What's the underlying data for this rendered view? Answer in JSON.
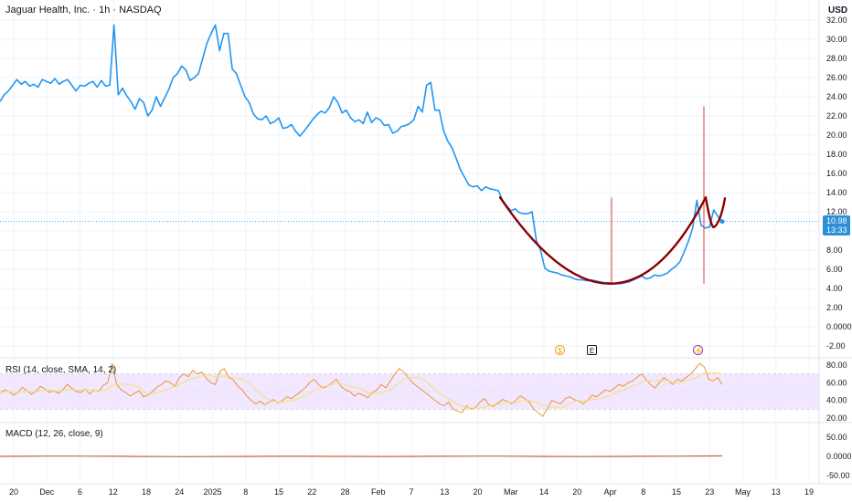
{
  "header": {
    "title": "Jaguar Health, Inc. · 1h · NASDAQ",
    "currency": "USD"
  },
  "indicators": {
    "rsi_label": "RSI (14, close, SMA, 14, 2)",
    "macd_label": "MACD (12, 26, close, 9)"
  },
  "price_label": {
    "value": "10.98",
    "countdown": "13:33"
  },
  "event_markers": {
    "dividend": "$",
    "earnings": "E",
    "split": "⚡"
  },
  "colors": {
    "price_line": "#2196f3",
    "cup_curve": "#8b0000",
    "spike": "#e53935",
    "rsi_line": "#f08a24",
    "rsi_band": "#ede1ff",
    "macd_line": "#c0692e"
  },
  "chart_data": [
    {
      "type": "line",
      "title": "Jaguar Health, Inc. · 1h · NASDAQ",
      "x_tick_labels": [
        "20",
        "Dec",
        "6",
        "12",
        "18",
        "24",
        "2025",
        "8",
        "15",
        "22",
        "28",
        "Feb",
        "7",
        "13",
        "20",
        "Mar",
        "14",
        "20",
        "Apr",
        "8",
        "15",
        "23",
        "May",
        "13",
        "19"
      ],
      "y_tick_labels": [
        "32.00",
        "30.00",
        "28.00",
        "26.00",
        "24.00",
        "22.00",
        "20.00",
        "18.00",
        "16.00",
        "14.00",
        "12.00",
        "10.00",
        "8.00",
        "6.00",
        "4.00",
        "2.00",
        "0.0000",
        "-2.00"
      ],
      "ylim": [
        -2,
        32
      ],
      "series": [
        {
          "values": [
            23.5,
            24.2,
            24.6,
            25.2,
            25.8,
            25.3,
            25.6,
            25.1,
            25.3,
            25.0,
            25.8,
            25.6,
            25.4,
            25.9,
            25.3,
            25.6,
            25.8,
            25.2,
            24.6,
            25.2,
            25.1,
            25.4,
            25.6,
            25.0,
            25.7,
            25.1,
            25.2,
            31.5,
            24.2,
            24.9,
            24.1,
            23.5,
            22.7,
            23.8,
            23.4,
            22.0,
            22.6,
            24.0,
            23.0,
            23.9,
            24.8,
            26.0,
            26.4,
            27.2,
            26.8,
            25.7,
            26.0,
            26.4,
            28.0,
            29.6,
            30.6,
            31.5,
            28.8,
            30.6,
            30.6,
            26.9,
            26.4,
            25.2,
            24.0,
            23.4,
            22.2,
            21.7,
            21.6,
            22.0,
            21.2,
            21.4,
            21.8,
            20.7,
            20.8,
            21.1,
            20.4,
            19.9,
            20.4,
            21.0,
            21.6,
            22.1,
            22.5,
            22.3,
            22.9,
            24.0,
            23.4,
            22.3,
            22.6,
            21.8,
            21.4,
            21.6,
            21.2,
            22.4,
            21.3,
            21.8,
            21.6,
            21.0,
            21.1,
            20.2,
            20.4,
            20.9,
            21.0,
            21.2,
            21.6,
            23.0,
            22.4,
            25.2,
            25.5,
            22.6,
            22.6,
            20.5,
            19.4,
            18.7,
            17.6,
            16.4,
            15.6,
            14.8,
            14.6,
            14.7,
            14.2,
            14.6,
            14.4,
            14.3,
            14.2,
            13.2,
            12.6,
            12.1,
            12.3,
            11.9,
            11.8,
            11.8,
            12.0,
            9.0,
            8.0,
            6.1,
            5.8,
            5.7,
            5.6,
            5.4,
            5.3,
            5.2,
            5.0,
            4.9,
            4.9,
            4.8,
            4.9,
            4.8,
            4.7,
            4.6,
            4.6,
            4.5,
            4.5,
            4.5,
            4.6,
            4.7,
            4.9,
            5.1,
            5.3,
            5.0,
            5.1,
            5.4,
            5.3,
            5.4,
            5.6,
            6.0,
            6.3,
            6.8,
            7.8,
            8.9,
            10.3,
            13.2,
            10.6,
            10.3,
            10.4,
            12.2,
            11.5,
            10.98
          ]
        }
      ],
      "overlays": {
        "cup_curve": {
          "from": [
            13.5,
            13.0
          ],
          "bottom": 4.5,
          "to": [
            13.5,
            13.4
          ]
        },
        "spikes": [
          13.5,
          23.0
        ]
      }
    },
    {
      "type": "line",
      "title": "RSI (14, close, SMA, 14, 2)",
      "y_tick_labels": [
        "80.00",
        "60.00",
        "40.00",
        "20.00"
      ],
      "ylim": [
        20,
        80
      ],
      "band": [
        30,
        70
      ],
      "values": [
        48,
        52,
        50,
        46,
        49,
        55,
        51,
        47,
        50,
        56,
        53,
        49,
        51,
        48,
        52,
        58,
        54,
        50,
        49,
        53,
        47,
        52,
        50,
        57,
        60,
        82,
        58,
        52,
        49,
        45,
        48,
        51,
        44,
        46,
        50,
        55,
        58,
        62,
        60,
        56,
        66,
        70,
        67,
        74,
        70,
        72,
        65,
        60,
        58,
        73,
        76,
        66,
        63,
        56,
        52,
        45,
        40,
        36,
        39,
        35,
        38,
        41,
        37,
        40,
        44,
        42,
        46,
        50,
        54,
        60,
        64,
        58,
        54,
        56,
        60,
        64,
        56,
        52,
        50,
        45,
        48,
        46,
        43,
        49,
        52,
        58,
        54,
        62,
        70,
        76,
        72,
        66,
        60,
        56,
        52,
        48,
        44,
        40,
        36,
        34,
        38,
        30,
        28,
        26,
        34,
        30,
        32,
        38,
        42,
        35,
        33,
        37,
        41,
        39,
        36,
        40,
        45,
        42,
        38,
        30,
        26,
        22,
        30,
        40,
        38,
        36,
        42,
        44,
        41,
        39,
        36,
        40,
        46,
        44,
        48,
        52,
        50,
        54,
        58,
        56,
        60,
        62,
        66,
        70,
        64,
        58,
        54,
        60,
        66,
        62,
        58,
        64,
        62,
        66,
        70,
        76,
        82,
        78,
        64,
        62,
        66,
        58
      ]
    },
    {
      "type": "line",
      "title": "MACD (12, 26, close, 9)",
      "y_tick_labels": [
        "50.00",
        "0.0000",
        "-50.00"
      ],
      "ylim": [
        -50,
        50
      ],
      "values": [
        0,
        0.3,
        0.6,
        0.8,
        0.5,
        0.2,
        -0.2,
        -0.5,
        -0.6,
        -0.4,
        -0.2,
        0.1,
        0.3,
        0.2,
        0,
        -0.1,
        -0.3,
        -0.2,
        0,
        0.2,
        0.5,
        0.7,
        0.4,
        0.1,
        -0.2,
        -0.5,
        -0.3,
        0,
        0.2,
        0.4,
        0.9,
        1.2
      ]
    }
  ]
}
